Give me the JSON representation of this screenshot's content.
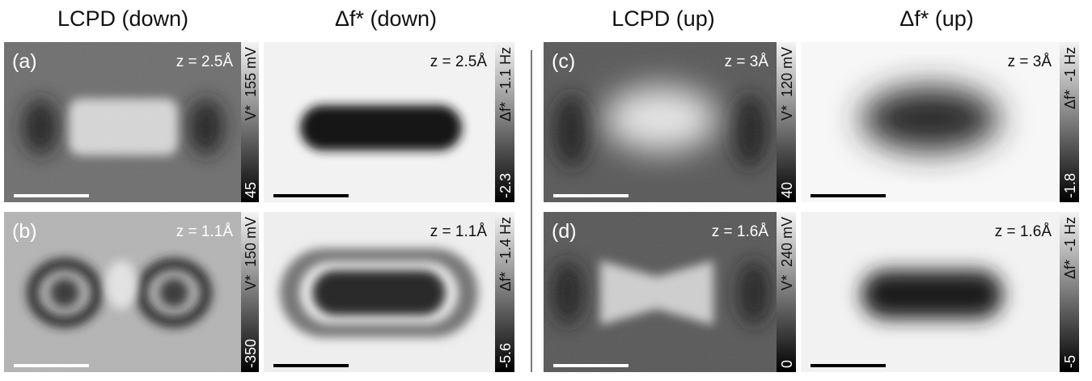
{
  "headers": [
    "LCPD (down)",
    "Δf* (down)",
    "LCPD (up)",
    "Δf* (up)"
  ],
  "panels": [
    {
      "label": "(a)",
      "z": "z = 2.5Å",
      "colorbar": {
        "symbol": "V*",
        "top": "155 mV",
        "bottom": "45"
      }
    },
    {
      "z": "z = 2.5Å",
      "colorbar": {
        "symbol": "Δf*",
        "top": "-1.1 Hz",
        "bottom": "-2.3"
      }
    },
    {
      "label": "(c)",
      "z": "z = 3Å",
      "colorbar": {
        "symbol": "V*",
        "top": "120 mV",
        "bottom": "40"
      }
    },
    {
      "z": "z = 3Å",
      "colorbar": {
        "symbol": "Δf*",
        "top": "-1 Hz",
        "bottom": "-1.8"
      }
    },
    {
      "label": "(b)",
      "z": "z = 1.1Å",
      "colorbar": {
        "symbol": "V*",
        "top": "150 mV",
        "bottom": "-350"
      }
    },
    {
      "z": "z = 1.1Å",
      "colorbar": {
        "symbol": "Δf*",
        "top": "-1.4 Hz",
        "bottom": "-5.6"
      }
    },
    {
      "label": "(d)",
      "z": "z = 1.6Å",
      "colorbar": {
        "symbol": "V*",
        "top": "240 mV",
        "bottom": "0"
      }
    },
    {
      "z": "z = 1.6Å",
      "colorbar": {
        "symbol": "Δf*",
        "top": "-1 Hz",
        "bottom": "-5"
      }
    }
  ]
}
